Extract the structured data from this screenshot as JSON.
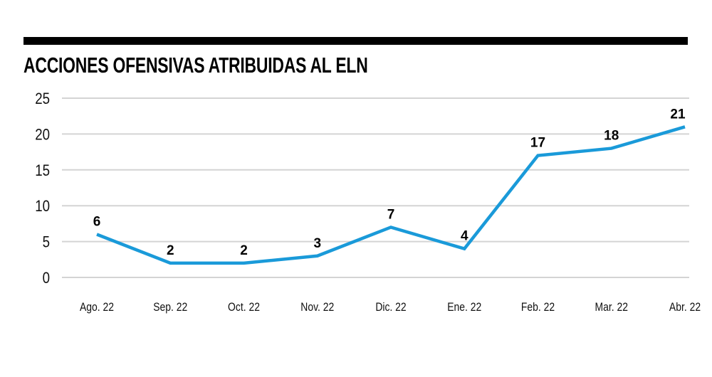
{
  "chart_data": {
    "type": "line",
    "title": "ACCIONES OFENSIVAS ATRIBUIDAS AL ELN",
    "xlabel": "",
    "ylabel": "",
    "categories": [
      "Ago. 22",
      "Sep. 22",
      "Oct. 22",
      "Nov. 22",
      "Dic. 22",
      "Ene. 22",
      "Feb. 22",
      "Mar. 22",
      "Abr. 22"
    ],
    "values": [
      6,
      2,
      2,
      3,
      7,
      4,
      17,
      18,
      21
    ],
    "data_labels": [
      "6",
      "2",
      "2",
      "3",
      "7",
      "4",
      "17",
      "18",
      "21"
    ],
    "ylim": [
      0,
      25
    ],
    "yticks": [
      0,
      5,
      10,
      15,
      20,
      25
    ],
    "ytick_labels": [
      "0",
      "5",
      "10",
      "15",
      "20",
      "25"
    ],
    "grid": true,
    "legend": "none",
    "colors": {
      "line": "#1a9ad9",
      "grid": "#d4d4d4",
      "bar": "#000000"
    }
  }
}
